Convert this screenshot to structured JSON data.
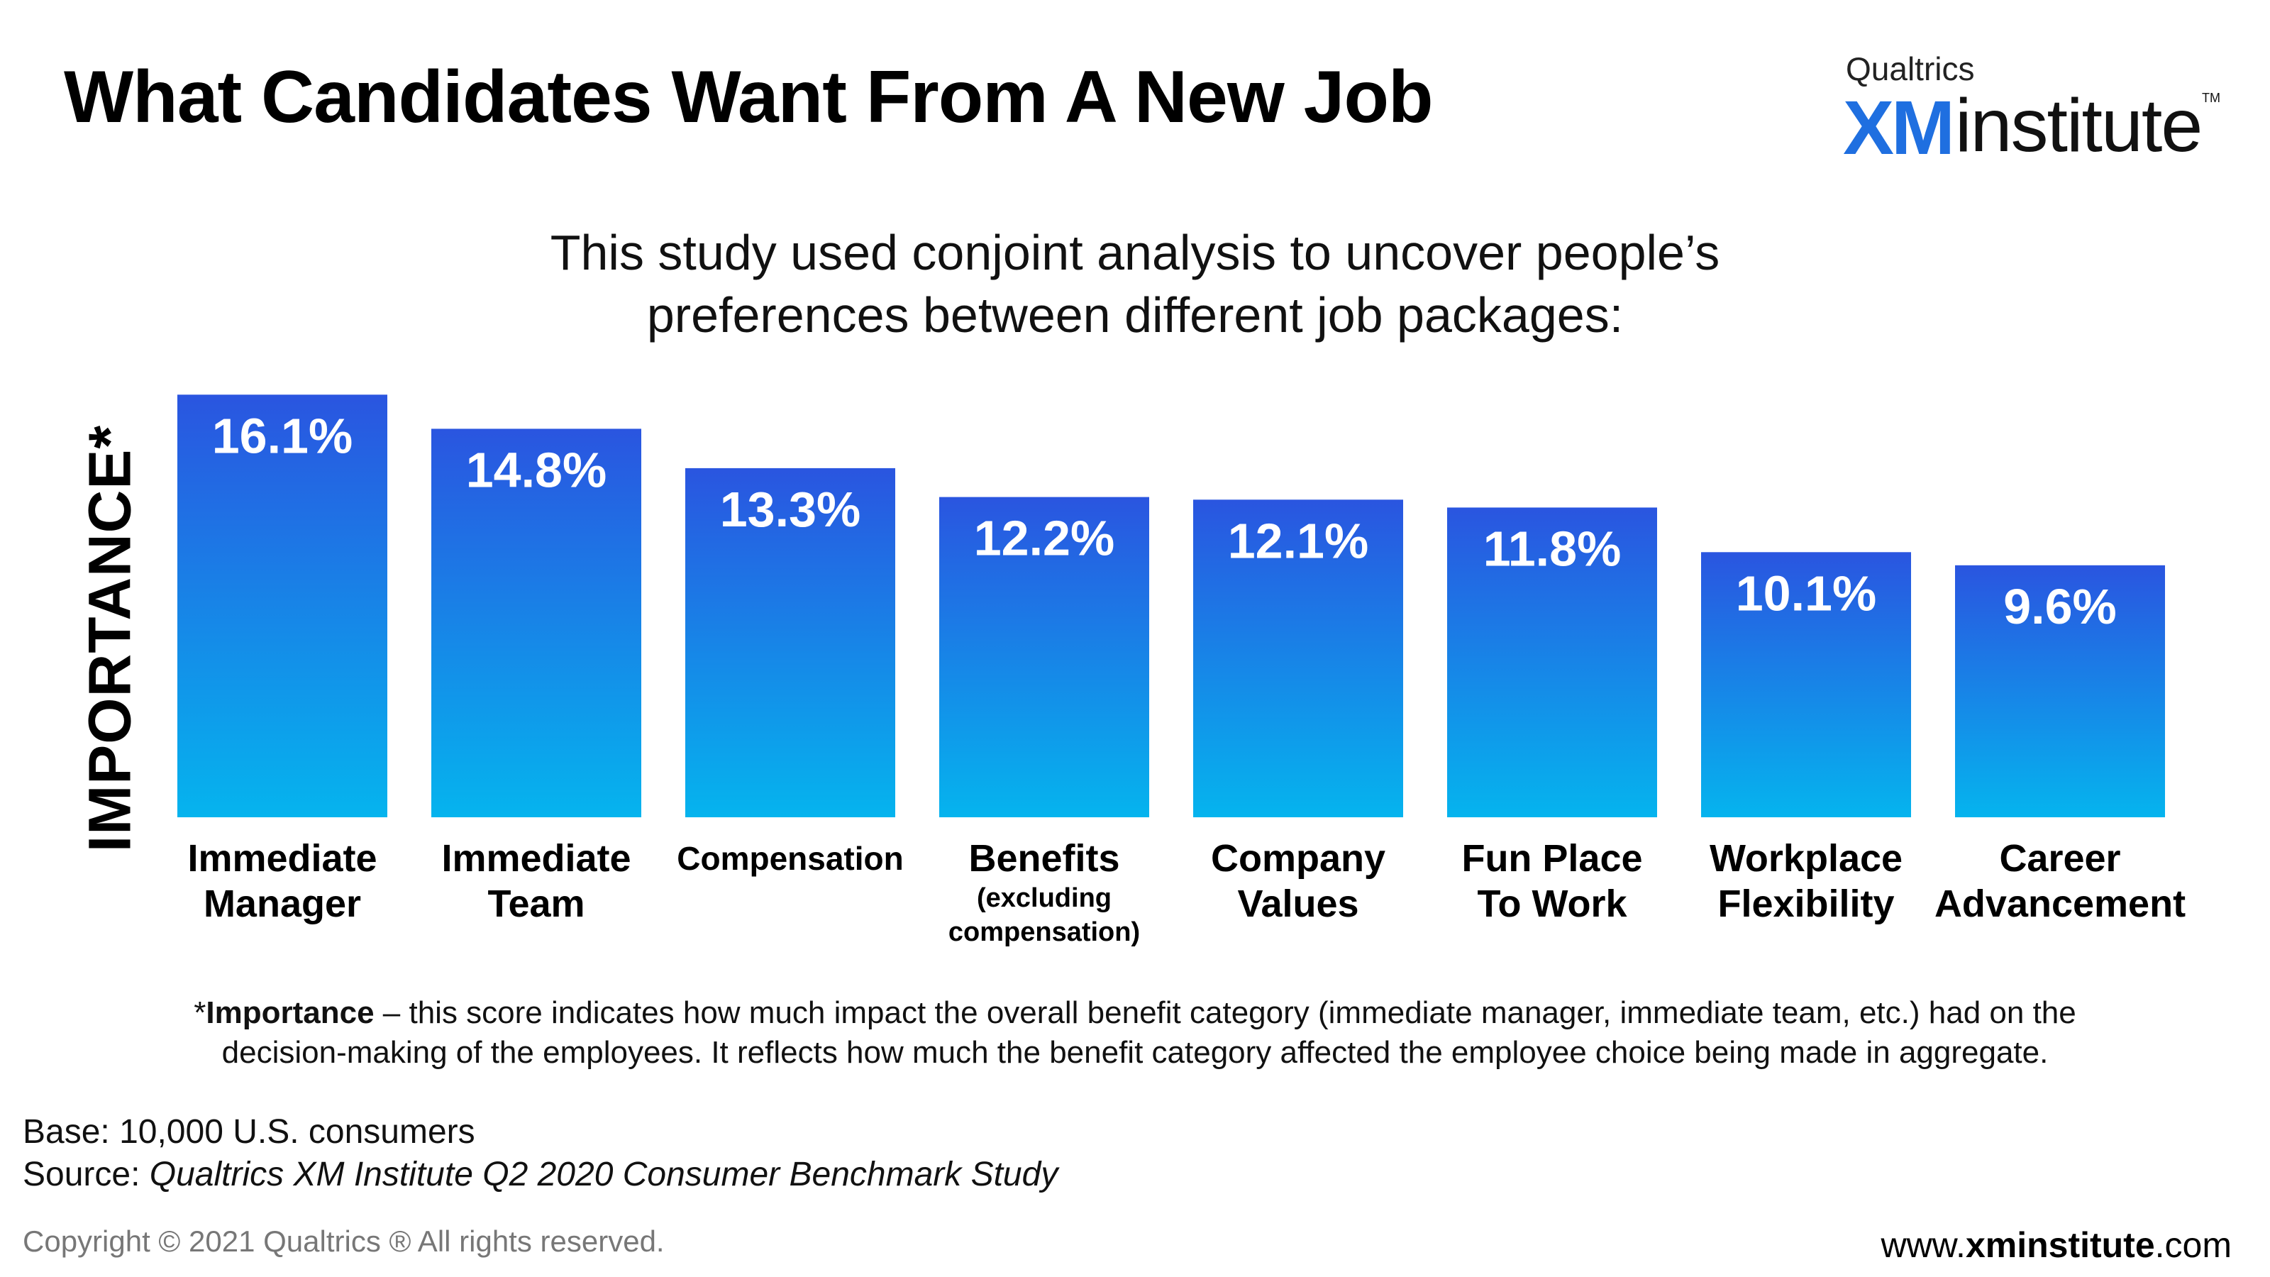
{
  "title": "What Candidates Want From A New Job",
  "logo": {
    "company": "Qualtrics",
    "xm": "XM",
    "institute": "institute",
    "tm": "TM"
  },
  "subtitle": {
    "line1": "This study used conjoint analysis to uncover people’s",
    "line2": "preferences between different job packages:"
  },
  "colors": {
    "bar_top": "#2a55e0",
    "bar_bottom": "#05b4ee",
    "label_text": "#ffffff",
    "logo_xm": "#1f6fe0"
  },
  "chart_data": {
    "type": "bar",
    "ylabel": "IMPORTANCE*",
    "categories": [
      {
        "line1": "Immediate",
        "line2": "Manager",
        "sub": ""
      },
      {
        "line1": "Immediate",
        "line2": "Team",
        "sub": ""
      },
      {
        "line1": "Compensation",
        "line2": "",
        "sub": ""
      },
      {
        "line1": "Benefits",
        "line2": "",
        "sub": "(excluding compensation)"
      },
      {
        "line1": "Company",
        "line2": "Values",
        "sub": ""
      },
      {
        "line1": "Fun Place",
        "line2": "To Work",
        "sub": ""
      },
      {
        "line1": "Workplace",
        "line2": "Flexibility",
        "sub": ""
      },
      {
        "line1": "Career",
        "line2": "Advancement",
        "sub": ""
      }
    ],
    "values": [
      16.1,
      14.8,
      13.3,
      12.2,
      12.1,
      11.8,
      10.1,
      9.6
    ],
    "value_labels": [
      "16.1%",
      "14.8%",
      "13.3%",
      "12.2%",
      "12.1%",
      "11.8%",
      "10.1%",
      "9.6%"
    ],
    "grid": false,
    "legend": "none"
  },
  "footnote": {
    "bold": "Importance",
    "line1_prefix": "*",
    "line1_rest": " – this score indicates how much impact the overall benefit category (immediate manager, immediate team, etc.) had on the",
    "line2": "decision-making of the employees.  It reflects how much the benefit category affected the employee choice being made in aggregate."
  },
  "base": "Base: 10,000 U.S. consumers",
  "source": {
    "label": "Source: ",
    "name": "Qualtrics XM Institute Q2 2020 Consumer Benchmark Study"
  },
  "copyright": "Copyright © 2021 Qualtrics ® All rights reserved.",
  "url": {
    "prefix": "www.",
    "bold": "xminstitute",
    "suffix": ".com"
  }
}
